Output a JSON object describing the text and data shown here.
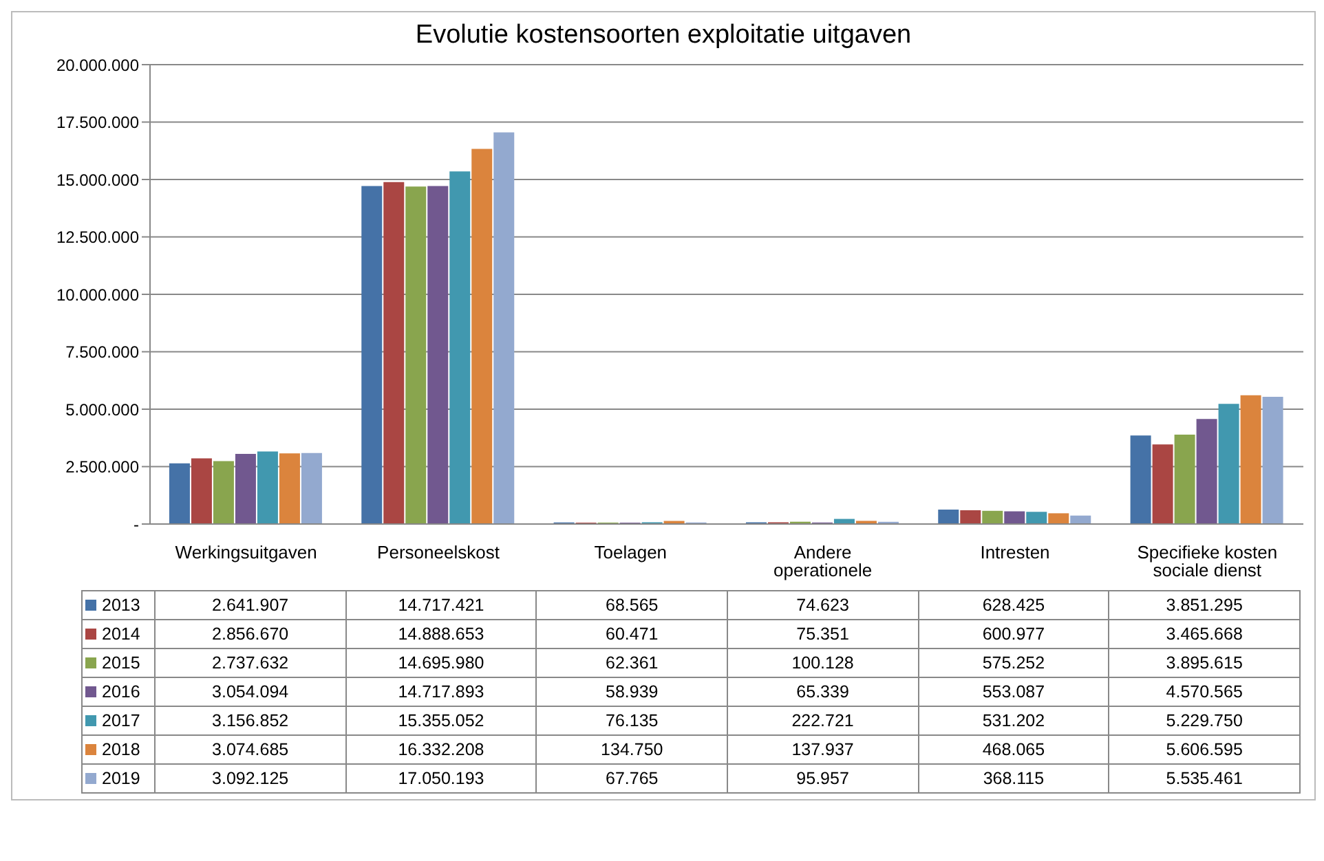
{
  "chart_data": {
    "type": "bar",
    "title": "Evolutie kostensoorten exploitatie uitgaven",
    "categories": [
      "Werkingsuitgaven",
      "Personeelskost",
      "Toelagen",
      "Andere operationele",
      "Intresten",
      "Specifieke kosten sociale dienst"
    ],
    "series": [
      {
        "name": "2013",
        "color": "#4572a7",
        "values": [
          2641907,
          14717421,
          68565,
          74623,
          628425,
          3851295
        ],
        "value_labels": [
          "2.641.907",
          "14.717.421",
          "68.565",
          "74.623",
          "628.425",
          "3.851.295"
        ]
      },
      {
        "name": "2014",
        "color": "#aa4643",
        "values": [
          2856670,
          14888653,
          60471,
          75351,
          600977,
          3465668
        ],
        "value_labels": [
          "2.856.670",
          "14.888.653",
          "60.471",
          "75.351",
          "600.977",
          "3.465.668"
        ]
      },
      {
        "name": "2015",
        "color": "#89a54e",
        "values": [
          2737632,
          14695980,
          62361,
          100128,
          575252,
          3895615
        ],
        "value_labels": [
          "2.737.632",
          "14.695.980",
          "62.361",
          "100.128",
          "575.252",
          "3.895.615"
        ]
      },
      {
        "name": "2016",
        "color": "#71588f",
        "values": [
          3054094,
          14717893,
          58939,
          65339,
          553087,
          4570565
        ],
        "value_labels": [
          "3.054.094",
          "14.717.893",
          "58.939",
          "65.339",
          "553.087",
          "4.570.565"
        ]
      },
      {
        "name": "2017",
        "color": "#4198af",
        "values": [
          3156852,
          15355052,
          76135,
          222721,
          531202,
          5229750
        ],
        "value_labels": [
          "3.156.852",
          "15.355.052",
          "76.135",
          "222.721",
          "531.202",
          "5.229.750"
        ]
      },
      {
        "name": "2018",
        "color": "#db843d",
        "values": [
          3074685,
          16332208,
          134750,
          137937,
          468065,
          5606595
        ],
        "value_labels": [
          "3.074.685",
          "16.332.208",
          "134.750",
          "137.937",
          "468.065",
          "5.606.595"
        ]
      },
      {
        "name": "2019",
        "color": "#93a9cf",
        "values": [
          3092125,
          17050193,
          67765,
          95957,
          368115,
          5535461
        ],
        "value_labels": [
          "3.092.125",
          "17.050.193",
          "67.765",
          "95.957",
          "368.115",
          "5.535.461"
        ]
      }
    ],
    "ylim": [
      0,
      20000000
    ],
    "yticks": [
      {
        "value": 0,
        "label": "-"
      },
      {
        "value": 2500000,
        "label": "2.500.000"
      },
      {
        "value": 5000000,
        "label": "5.000.000"
      },
      {
        "value": 7500000,
        "label": "7.500.000"
      },
      {
        "value": 10000000,
        "label": "10.000.000"
      },
      {
        "value": 12500000,
        "label": "12.500.000"
      },
      {
        "value": 15000000,
        "label": "15.000.000"
      },
      {
        "value": 17500000,
        "label": "17.500.000"
      },
      {
        "value": 20000000,
        "label": "20.000.000"
      }
    ],
    "grid": "y",
    "legend": "bottom"
  }
}
